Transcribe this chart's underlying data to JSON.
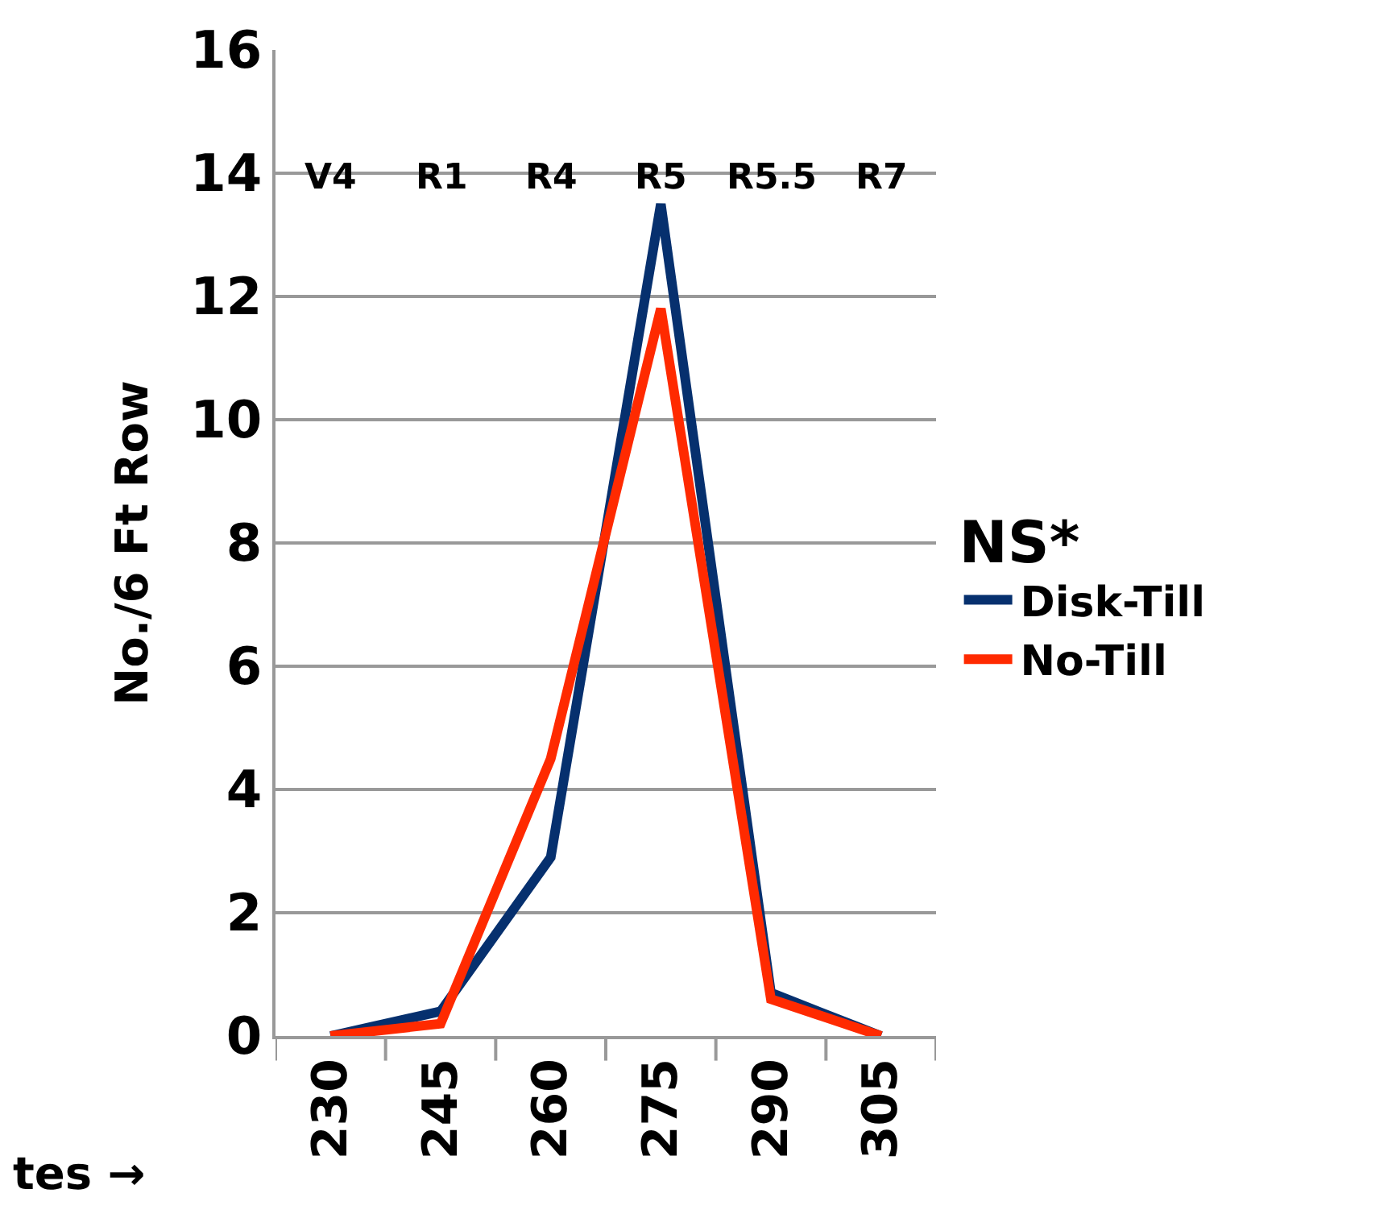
{
  "chart_data": {
    "type": "line",
    "xlabel": "tes →",
    "ylabel": "No./6 Ft Row",
    "legend_title": "NS*",
    "categories": [
      "230",
      "245",
      "260",
      "275",
      "290",
      "305"
    ],
    "series": [
      {
        "name": "Disk-Till",
        "color": "#06306e",
        "values": [
          0,
          0.4,
          2.9,
          13.5,
          0.7,
          0
        ]
      },
      {
        "name": "No-Till",
        "color": "#ff2a00",
        "values": [
          0,
          0.2,
          4.5,
          11.8,
          0.6,
          0
        ]
      }
    ],
    "annotations": [
      "V4",
      "R1",
      "R4",
      "R5",
      "R5.5",
      "R7"
    ],
    "ylim": [
      0,
      16
    ],
    "yticks": [
      0,
      2,
      4,
      6,
      8,
      10,
      12,
      14,
      16
    ],
    "grid": "y",
    "legend": "right",
    "marker": "none",
    "line_style": "solid"
  }
}
